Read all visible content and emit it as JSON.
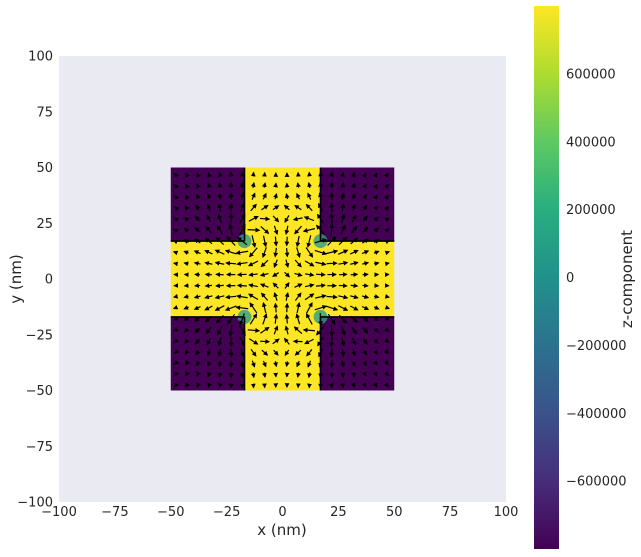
{
  "chart_data": {
    "type": "heatmap",
    "title": "",
    "xlabel": "x (nm)",
    "ylabel": "y (nm)",
    "xlim": [
      -100,
      100
    ],
    "ylim": [
      -100,
      100
    ],
    "x_ticks": [
      "−100",
      "−75",
      "−50",
      "−25",
      "0",
      "25",
      "50",
      "75",
      "100"
    ],
    "y_ticks": [
      "100",
      "75",
      "50",
      "25",
      "0",
      "−25",
      "−50",
      "−75",
      "−100"
    ],
    "grid": false,
    "background_color": "#eaeaf2",
    "colormap": "viridis",
    "colorbar": {
      "label": "z-component",
      "range": [
        -800000,
        800000
      ],
      "ticks": [
        "600000",
        "400000",
        "200000",
        "0",
        "−200000",
        "−400000",
        "−600000"
      ]
    },
    "regions": [
      {
        "name": "corner",
        "x": [
          -50,
          -17
        ],
        "y": [
          17,
          50
        ],
        "value": -800000
      },
      {
        "name": "corner",
        "x": [
          17,
          50
        ],
        "y": [
          17,
          50
        ],
        "value": -800000
      },
      {
        "name": "corner",
        "x": [
          -50,
          -17
        ],
        "y": [
          -50,
          -17
        ],
        "value": -800000
      },
      {
        "name": "corner",
        "x": [
          17,
          50
        ],
        "y": [
          -50,
          -17
        ],
        "value": -800000
      },
      {
        "name": "vertical-bar",
        "x": [
          -17,
          17
        ],
        "y": [
          -50,
          50
        ],
        "value": 800000
      },
      {
        "name": "horizontal-bar",
        "x": [
          -50,
          50
        ],
        "y": [
          -17,
          17
        ],
        "value": 800000
      }
    ],
    "vector_field": {
      "component": "in-plane magnetization (x, y)",
      "x_range": [
        -48,
        48
      ],
      "y_range": [
        -48,
        48
      ],
      "spacing": 5,
      "color": "#000000"
    }
  }
}
